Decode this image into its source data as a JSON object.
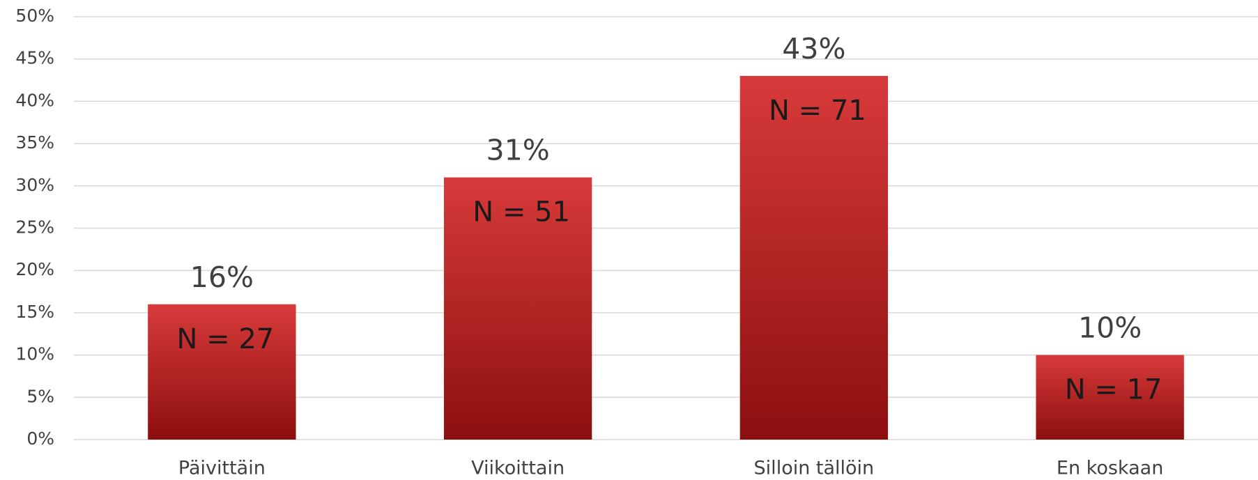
{
  "chart_data": {
    "type": "bar",
    "categories": [
      "Päivittäin",
      "Viikoittain",
      "Silloin tällöin",
      "En koskaan"
    ],
    "values": [
      16,
      31,
      43,
      10
    ],
    "value_labels": [
      "16%",
      "31%",
      "43%",
      "10%"
    ],
    "n_labels": [
      "N = 27",
      "N = 51",
      "N = 71",
      "N = 17"
    ],
    "color": [
      "#d83a3a",
      "#8c0f0f"
    ],
    "ylim": [
      0,
      50
    ],
    "yticks": [
      {
        "value": 0,
        "label": "0%"
      },
      {
        "value": 5,
        "label": "5%"
      },
      {
        "value": 10,
        "label": "10%"
      },
      {
        "value": 15,
        "label": "15%"
      },
      {
        "value": 20,
        "label": "20%"
      },
      {
        "value": 25,
        "label": "25%"
      },
      {
        "value": 30,
        "label": "30%"
      },
      {
        "value": 35,
        "label": "35%"
      },
      {
        "value": 40,
        "label": "40%"
      },
      {
        "value": 45,
        "label": "45%"
      },
      {
        "value": 50,
        "label": "50%"
      }
    ],
    "grid": true
  }
}
